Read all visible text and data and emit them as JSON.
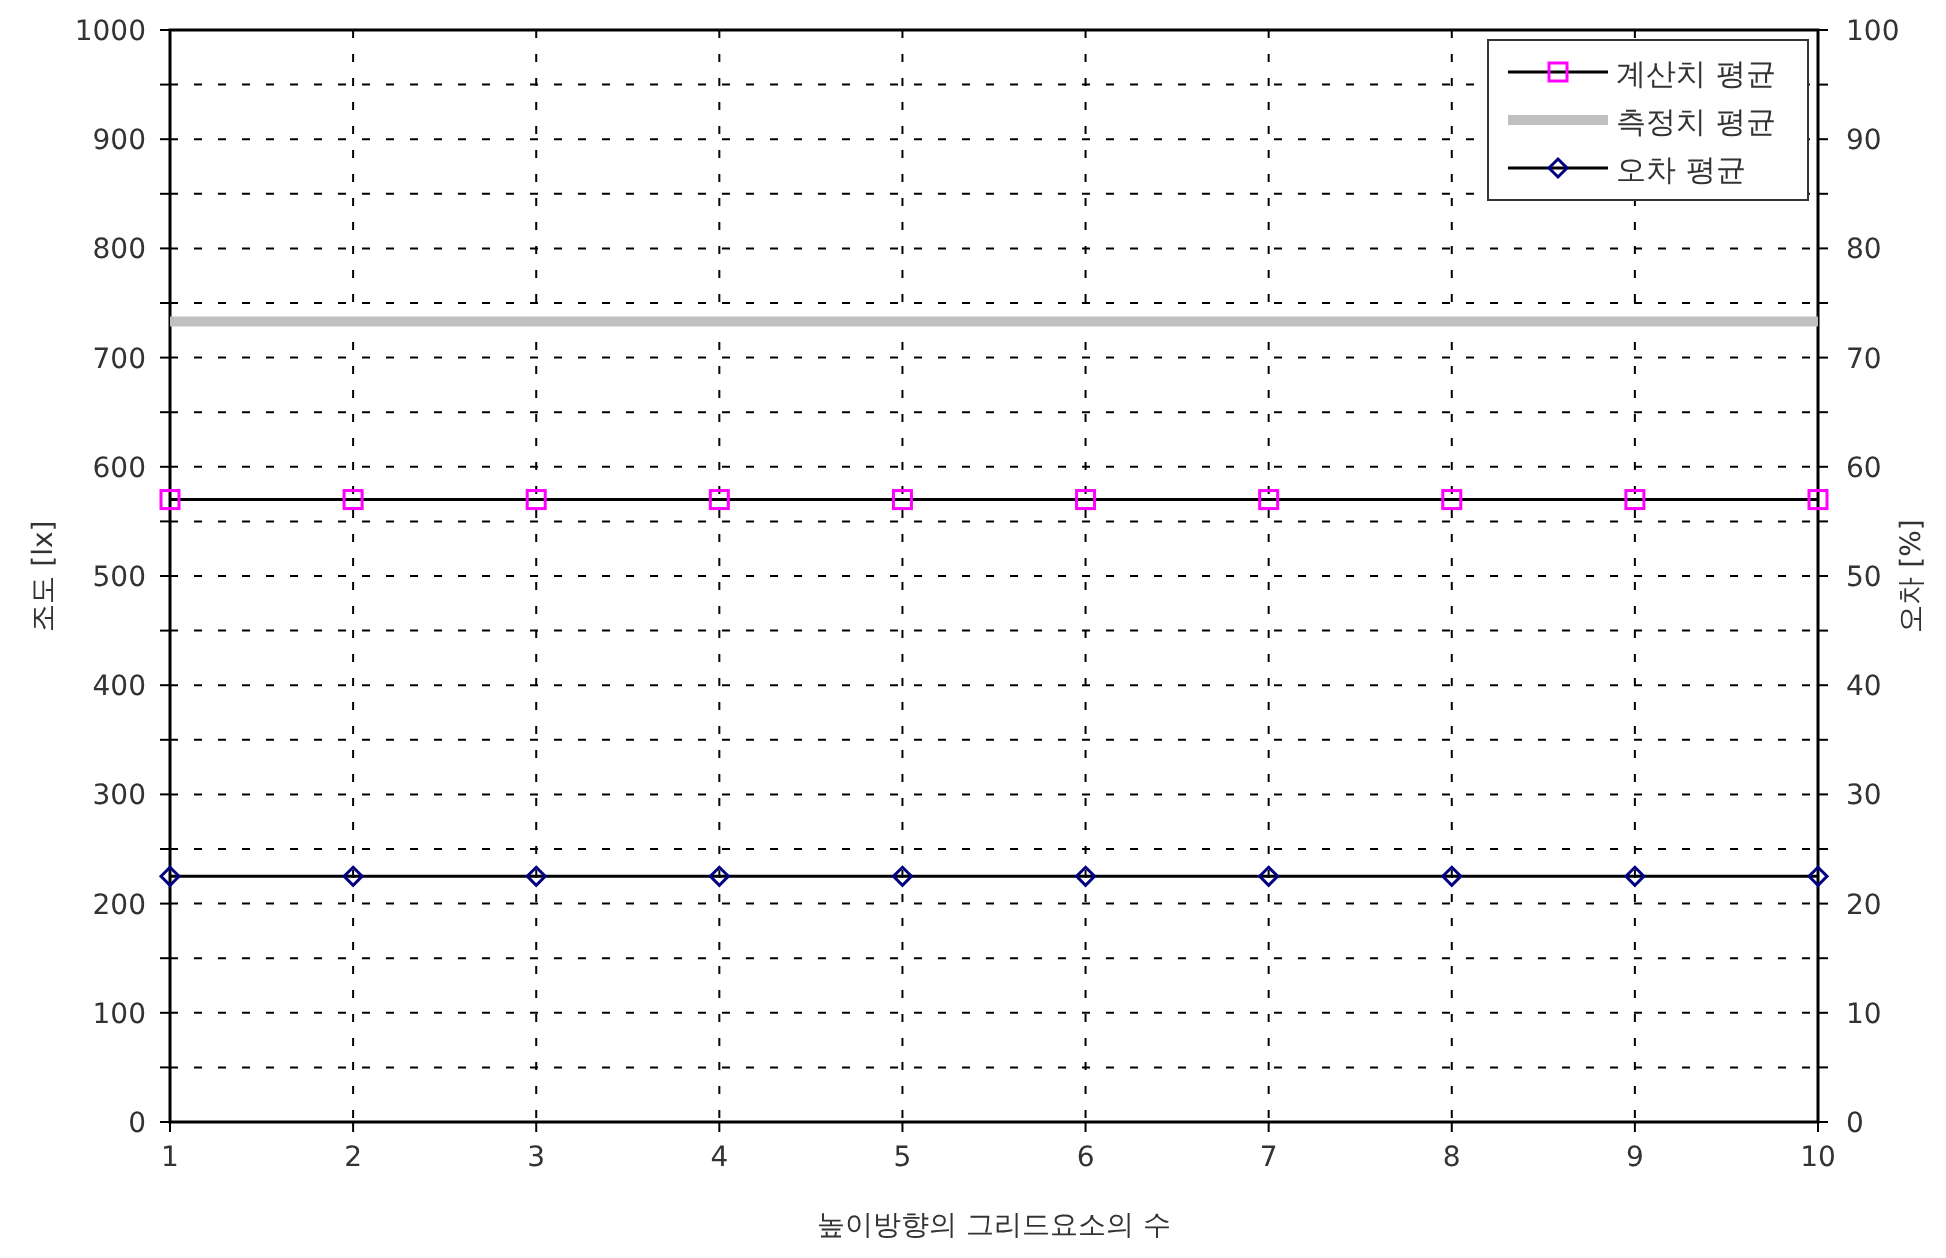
{
  "chart_data": {
    "type": "line",
    "xlabel": "높이방향의 그리드요소의 수",
    "ylabel": "조도 [lx]",
    "y2label": "오차 [%]",
    "x": [
      1,
      2,
      3,
      4,
      5,
      6,
      7,
      8,
      9,
      10
    ],
    "series": [
      {
        "name": "계산치 평균",
        "color": "#ff00ff",
        "marker": "square",
        "values": [
          570,
          570,
          570,
          570,
          570,
          570,
          570,
          570,
          570,
          570
        ]
      },
      {
        "name": "측정치 평균",
        "color": "#c0c0c0",
        "marker": "none",
        "values": [
          733,
          733,
          733,
          733,
          733,
          733,
          733,
          733,
          733,
          733
        ]
      },
      {
        "name": "오차 평균",
        "color": "#000080",
        "marker": "diamond",
        "axis": "y2",
        "values": [
          22.5,
          22.5,
          22.5,
          22.5,
          22.5,
          22.5,
          22.5,
          22.5,
          22.5,
          22.5
        ]
      }
    ],
    "xlim": [
      1,
      10
    ],
    "xticks": [
      1,
      2,
      3,
      4,
      5,
      6,
      7,
      8,
      9,
      10
    ],
    "ylim": [
      0,
      1000
    ],
    "yticks": [
      0,
      {
        "value": 50,
        "label": null
      },
      100,
      {
        "value": 150,
        "label": null
      },
      200,
      {
        "value": 250,
        "label": null
      },
      300,
      {
        "value": 350,
        "label": null
      },
      400,
      {
        "value": 450,
        "label": null
      },
      500,
      {
        "value": 550,
        "label": null
      },
      600,
      {
        "value": 650,
        "label": null
      },
      700,
      {
        "value": 750,
        "label": null
      },
      800,
      {
        "value": 850,
        "label": null
      },
      900,
      {
        "value": 950,
        "label": null
      },
      1000
    ],
    "y2lim": [
      0,
      100
    ],
    "y2ticks": [
      0,
      {
        "value": 5,
        "label": null
      },
      10,
      {
        "value": 15,
        "label": null
      },
      20,
      {
        "value": 25,
        "label": null
      },
      30,
      {
        "value": 35,
        "label": null
      },
      40,
      {
        "value": 45,
        "label": null
      },
      50,
      {
        "value": 55,
        "label": null
      },
      60,
      {
        "value": 65,
        "label": null
      },
      70,
      {
        "value": 75,
        "label": null
      },
      80,
      {
        "value": 85,
        "label": null
      },
      90,
      {
        "value": 95,
        "label": null
      },
      100
    ],
    "grid": true,
    "legend": "top right"
  }
}
